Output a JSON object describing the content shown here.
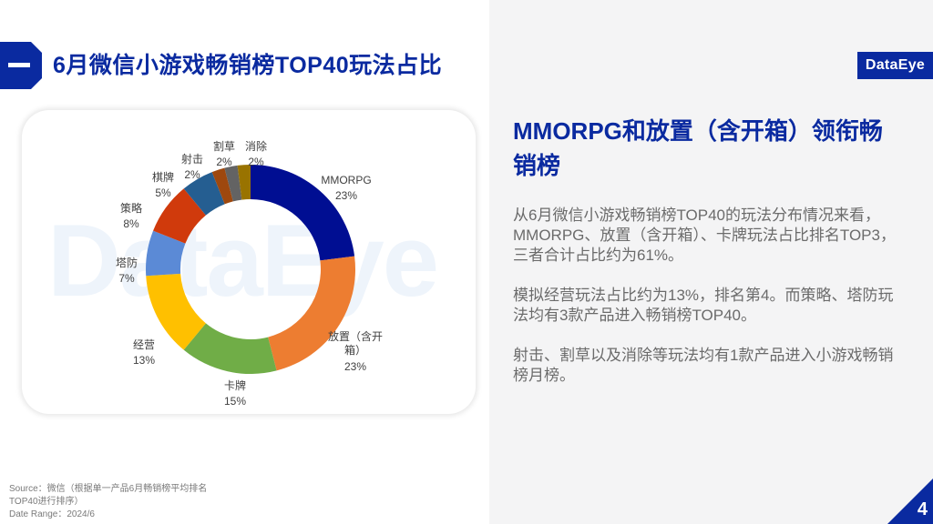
{
  "header": {
    "title": "6月微信小游戏畅销榜TOP40玩法占比",
    "badge_icon": "minus-icon",
    "logo_text": "DataEye"
  },
  "colors": {
    "brand": "#0a2aa0",
    "panel_bg": "#f4f4f5"
  },
  "chart_data": {
    "type": "pie",
    "subtype": "donut",
    "title": "6月微信小游戏畅销榜TOP40玩法占比",
    "categories": [
      "MMORPG",
      "放置（含开箱）",
      "卡牌",
      "经营",
      "塔防",
      "策略",
      "棋牌",
      "射击",
      "割草",
      "消除"
    ],
    "values": [
      23,
      23,
      15,
      13,
      7,
      8,
      5,
      2,
      2,
      2
    ],
    "unit": "%",
    "colors": [
      "#000e92",
      "#ed7d31",
      "#70ad47",
      "#ffc000",
      "#5b8ad6",
      "#d03a0c",
      "#255e91",
      "#9e480e",
      "#636363",
      "#997300"
    ],
    "watermark": "DataEye",
    "legend": "none (data labels on slices)"
  },
  "labels": [
    {
      "name": "MMORPG",
      "pct": "23%"
    },
    {
      "name": "放置（含开",
      "name2": "箱）",
      "pct": "23%"
    },
    {
      "name": "卡牌",
      "pct": "15%"
    },
    {
      "name": "经营",
      "pct": "13%"
    },
    {
      "name": "塔防",
      "pct": "7%"
    },
    {
      "name": "策略",
      "pct": "8%"
    },
    {
      "name": "棋牌",
      "pct": "5%"
    },
    {
      "name": "射击",
      "pct": "2%"
    },
    {
      "name": "割草",
      "pct": "2%"
    },
    {
      "name": "消除",
      "pct": "2%"
    }
  ],
  "insight": {
    "headline": "MMORPG和放置（含开箱）领衔畅销榜",
    "paragraphs": [
      "从6月微信小游戏畅销榜TOP40的玩法分布情况来看，MMORPG、放置（含开箱）、卡牌玩法占比排名TOP3，三者合计占比约为61%。",
      "模拟经营玩法占比约为13%，排名第4。而策略、塔防玩法均有3款产品进入畅销榜TOP40。",
      "射击、割草以及消除等玩法均有1款产品进入小游戏畅销榜月榜。"
    ]
  },
  "footer": {
    "source_line1": "Source：微信（根据单一产品6月畅销榜平均排名",
    "source_line2": "TOP40进行排序）",
    "date_range": "Date Range：2024/6",
    "page_number": "4"
  }
}
